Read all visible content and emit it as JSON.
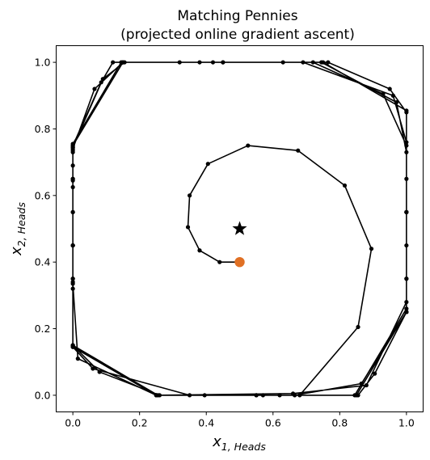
{
  "chart_data": {
    "type": "line",
    "title": "Matching Pennies",
    "subtitle": "(projected online gradient ascent)",
    "xlabel": {
      "main": "x",
      "sub": "1, Heads"
    },
    "ylabel": {
      "main": "x",
      "sub": "2, Heads"
    },
    "xlim": [
      -0.05,
      1.05
    ],
    "ylim": [
      -0.05,
      1.05
    ],
    "xticks": [
      0.0,
      0.2,
      0.4,
      0.6,
      0.8,
      1.0
    ],
    "yticks": [
      0.0,
      0.2,
      0.4,
      0.6,
      0.8,
      1.0
    ],
    "xtick_labels": [
      "0.0",
      "0.2",
      "0.4",
      "0.6",
      "0.8",
      "1.0"
    ],
    "ytick_labels": [
      "0.0",
      "0.2",
      "0.4",
      "0.6",
      "0.8",
      "1.0"
    ],
    "grid": false,
    "series": [
      {
        "name": "trajectory",
        "color": "#000000",
        "marker": "dot",
        "x": [
          0.5,
          0.44,
          0.38,
          0.345,
          0.35,
          0.405,
          0.525,
          0.675,
          0.815,
          0.895,
          0.855,
          0.68,
          0.55,
          0.395,
          0.26,
          0.08,
          0.0,
          0.0,
          0.0,
          0.0,
          0.0,
          0.0,
          0.09,
          0.155,
          0.38,
          0.63,
          0.765,
          0.95,
          1.0,
          1.0,
          1.0,
          1.0,
          1.0,
          0.905,
          0.855,
          0.62,
          0.35,
          0.06,
          0.0,
          0.0,
          0.0,
          0.0,
          0.0,
          0.0,
          0.065,
          0.15,
          0.32,
          0.72,
          0.93,
          1.0,
          1.0,
          1.0,
          1.0,
          1.0,
          0.865,
          0.665,
          0.255,
          0.0,
          0.0,
          0.0,
          0.0,
          0.0,
          0.085,
          0.12,
          0.42,
          0.745,
          0.97,
          1.0,
          1.0,
          1.0,
          1.0,
          0.845,
          0.57,
          0.25,
          0.015,
          0.0,
          0.0,
          0.0,
          0.0,
          0.0,
          0.145,
          0.45,
          0.69,
          0.96,
          1.0,
          1.0,
          1.0,
          0.88,
          0.66,
          0.25,
          0.0,
          0.0,
          0.0,
          0.0,
          0.0,
          0.15,
          0.45,
          0.75,
          1.0,
          1.0,
          1.0,
          0.85,
          0.55,
          0.25,
          0.0,
          0.0
        ],
        "y": [
          0.4,
          0.4,
          0.435,
          0.505,
          0.6,
          0.695,
          0.75,
          0.735,
          0.63,
          0.44,
          0.205,
          0.0,
          0.0,
          0.0,
          0.0,
          0.07,
          0.15,
          0.35,
          0.45,
          0.625,
          0.745,
          0.745,
          0.95,
          1.0,
          1.0,
          1.0,
          1.0,
          0.92,
          0.85,
          0.65,
          0.45,
          0.25,
          0.25,
          0.065,
          0.0,
          0.0,
          0.0,
          0.08,
          0.145,
          0.32,
          0.45,
          0.645,
          0.73,
          0.74,
          0.92,
          1.0,
          1.0,
          1.0,
          0.905,
          0.75,
          0.55,
          0.35,
          0.25,
          0.25,
          0.035,
          0.0,
          0.0,
          0.15,
          0.34,
          0.55,
          0.69,
          0.75,
          0.94,
          1.0,
          1.0,
          1.0,
          0.88,
          0.73,
          0.55,
          0.35,
          0.26,
          0.0,
          0.0,
          0.0,
          0.11,
          0.335,
          0.55,
          0.65,
          0.735,
          0.755,
          1.0,
          1.0,
          1.0,
          0.9,
          0.76,
          0.55,
          0.28,
          0.03,
          0.005,
          0.0,
          0.145,
          0.35,
          0.45,
          0.65,
          0.75,
          1.0,
          1.0,
          1.0,
          0.855,
          0.55,
          0.25,
          0.0,
          0.0,
          0.0,
          0.15,
          0.45
        ]
      }
    ],
    "annotations": [
      {
        "name": "start-point",
        "x": 0.5,
        "y": 0.4,
        "marker": "circle",
        "color": "#e07024"
      },
      {
        "name": "equilibrium-star",
        "x": 0.5,
        "y": 0.5,
        "marker": "star",
        "color": "#000000"
      }
    ]
  }
}
